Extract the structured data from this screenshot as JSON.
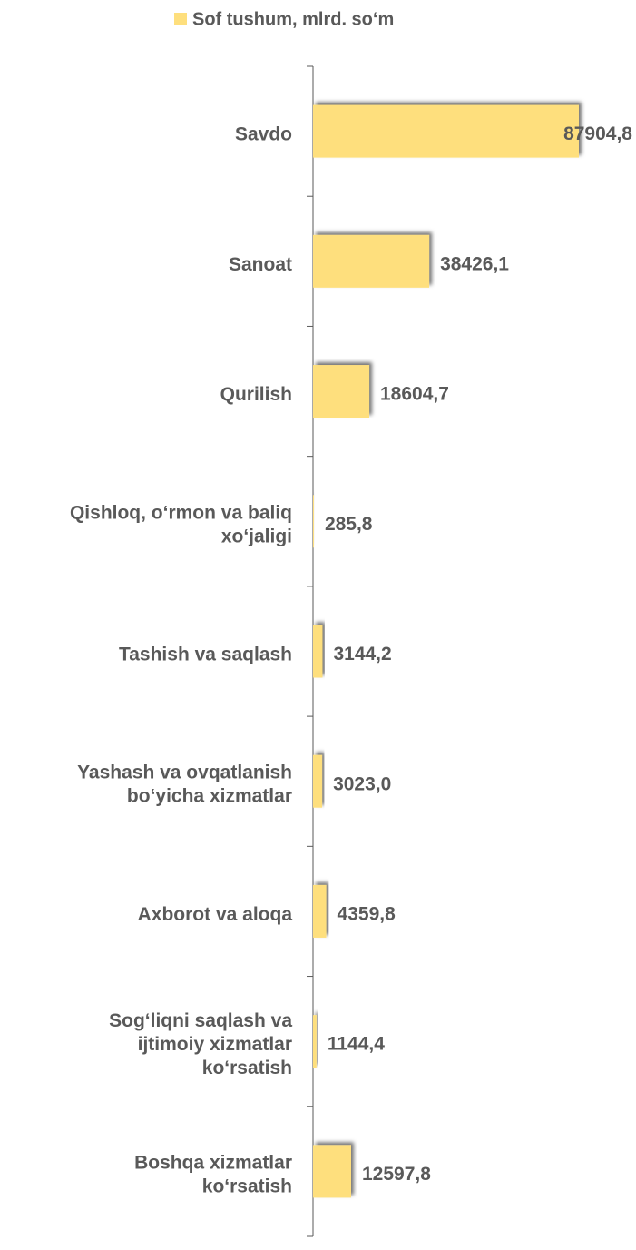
{
  "chart_data": {
    "type": "bar",
    "orientation": "horizontal",
    "legend": "Sof tushum, mlrd. so‘m",
    "color": "#fedf7d",
    "categories": [
      "Savdo",
      "Sanoat",
      "Qurilish",
      "Qishloq, o‘rmon va baliq xo‘jaligi",
      "Tashish va saqlash",
      "Yashash va ovqatlanish bo‘yicha xizmatlar",
      "Axborot va aloqa",
      "Sog‘liqni saqlash va ijtimoiy xizmatlar ko‘rsatish",
      "Boshqa xizmatlar ko‘rsatish"
    ],
    "values": [
      87904.8,
      38426.1,
      18604.7,
      285.8,
      3144.2,
      3023.0,
      4359.8,
      1144.4,
      12597.8
    ],
    "value_labels": [
      "87904,8",
      "38426,1",
      "18604,7",
      "285,8",
      "3144,2",
      "3023,0",
      "4359,8",
      "1144,4",
      "12597,8"
    ]
  }
}
